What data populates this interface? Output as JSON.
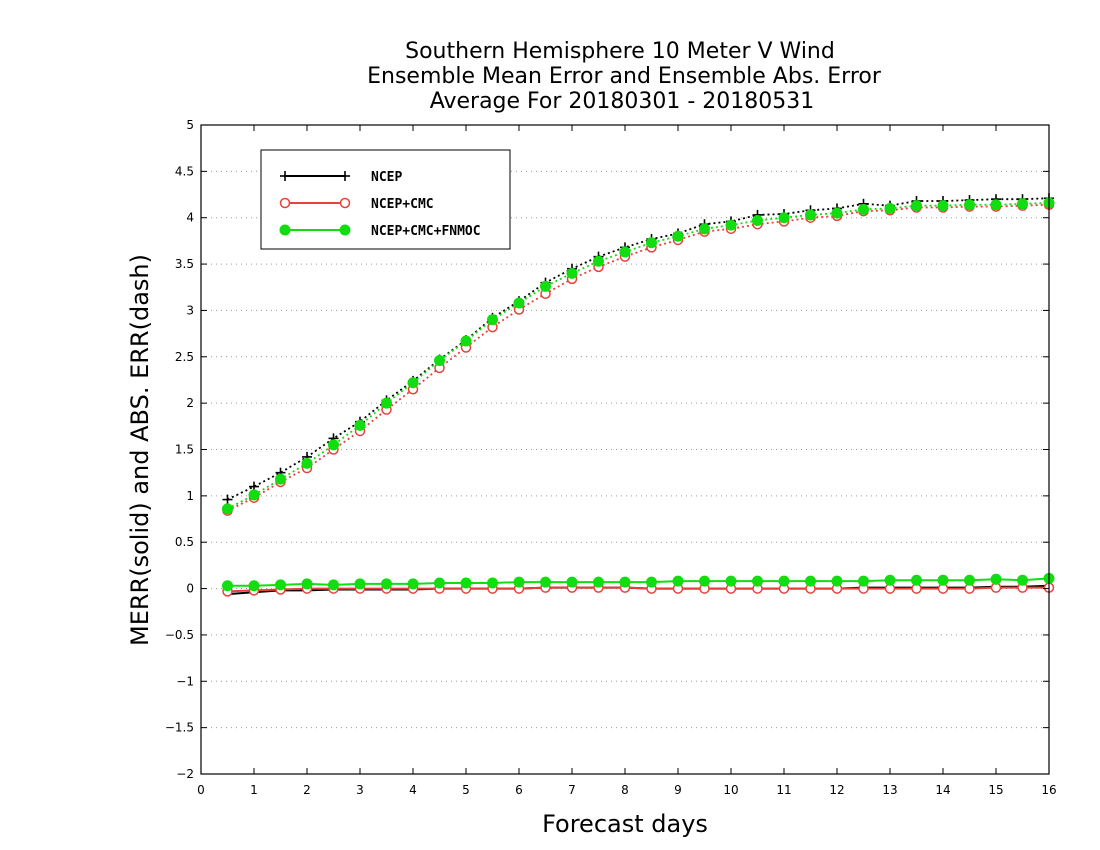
{
  "chart_data": {
    "type": "line",
    "title_lines": [
      "Southern Hemisphere 10 Meter V Wind",
      "Ensemble Mean Error and Ensemble Abs. Error",
      "Average For 20180301 - 20180531"
    ],
    "xlabel": "Forecast days",
    "ylabel": "MERR(solid) and ABS. ERR(dash)",
    "xlim": [
      0,
      16
    ],
    "ylim": [
      -2,
      5
    ],
    "xticks": [
      "0",
      "1",
      "2",
      "3",
      "4",
      "5",
      "6",
      "7",
      "8",
      "9",
      "10",
      "11",
      "12",
      "13",
      "14",
      "15",
      "16"
    ],
    "yticks": [
      "−2",
      "−1.5",
      "−1",
      "−0.5",
      "0",
      "0.5",
      "1",
      "1.5",
      "2",
      "2.5",
      "3",
      "3.5",
      "4",
      "4.5",
      "5"
    ],
    "grid": "horizontal-dotted",
    "legend_position": "top-left",
    "x": [
      0.5,
      1,
      1.5,
      2,
      2.5,
      3,
      3.5,
      4,
      4.5,
      5,
      5.5,
      6,
      6.5,
      7,
      7.5,
      8,
      8.5,
      9,
      9.5,
      10,
      10.5,
      11,
      11.5,
      12,
      12.5,
      13,
      13.5,
      14,
      14.5,
      15,
      15.5,
      16
    ],
    "series": [
      {
        "name": "NCEP",
        "color": "#000000",
        "marker": "plus",
        "abs_err": [
          0.96,
          1.1,
          1.25,
          1.42,
          1.62,
          1.8,
          2.03,
          2.24,
          2.47,
          2.68,
          2.92,
          3.1,
          3.3,
          3.45,
          3.58,
          3.68,
          3.77,
          3.83,
          3.93,
          3.96,
          4.03,
          4.04,
          4.08,
          4.1,
          4.15,
          4.13,
          4.18,
          4.18,
          4.19,
          4.2,
          4.2,
          4.21
        ],
        "mean_err": [
          -0.06,
          -0.04,
          -0.02,
          -0.02,
          -0.01,
          -0.01,
          -0.01,
          -0.01,
          0.0,
          0.0,
          0.0,
          0.0,
          0.01,
          0.01,
          0.01,
          0.01,
          0.0,
          0.0,
          0.0,
          0.0,
          0.0,
          0.0,
          0.0,
          0.0,
          0.01,
          0.01,
          0.01,
          0.01,
          0.01,
          0.02,
          0.02,
          0.03
        ]
      },
      {
        "name": "NCEP+CMC",
        "color": "#e8413c",
        "marker": "open-circle",
        "abs_err": [
          0.84,
          0.98,
          1.15,
          1.3,
          1.5,
          1.7,
          1.93,
          2.15,
          2.38,
          2.6,
          2.82,
          3.01,
          3.18,
          3.34,
          3.47,
          3.58,
          3.68,
          3.76,
          3.85,
          3.88,
          3.93,
          3.96,
          4.0,
          4.02,
          4.07,
          4.08,
          4.11,
          4.11,
          4.12,
          4.12,
          4.13,
          4.14
        ],
        "mean_err": [
          -0.03,
          -0.02,
          -0.01,
          0.0,
          0.0,
          0.0,
          0.0,
          0.0,
          0.0,
          0.0,
          0.0,
          0.0,
          0.01,
          0.01,
          0.01,
          0.01,
          0.0,
          0.0,
          0.0,
          0.0,
          0.0,
          0.0,
          0.0,
          0.0,
          0.0,
          0.0,
          0.0,
          0.0,
          0.0,
          0.01,
          0.01,
          0.01
        ]
      },
      {
        "name": "NCEP+CMC+FNMOC",
        "color": "#11dd11",
        "marker": "filled-circle",
        "abs_err": [
          0.86,
          1.01,
          1.18,
          1.35,
          1.55,
          1.76,
          2.0,
          2.22,
          2.46,
          2.67,
          2.9,
          3.08,
          3.26,
          3.4,
          3.53,
          3.63,
          3.73,
          3.8,
          3.88,
          3.92,
          3.97,
          4.0,
          4.03,
          4.05,
          4.09,
          4.1,
          4.13,
          4.13,
          4.14,
          4.14,
          4.15,
          4.16
        ],
        "mean_err": [
          0.03,
          0.03,
          0.04,
          0.05,
          0.04,
          0.05,
          0.05,
          0.05,
          0.06,
          0.06,
          0.06,
          0.07,
          0.07,
          0.07,
          0.07,
          0.07,
          0.07,
          0.08,
          0.08,
          0.08,
          0.08,
          0.08,
          0.08,
          0.08,
          0.08,
          0.09,
          0.09,
          0.09,
          0.09,
          0.1,
          0.09,
          0.11
        ]
      }
    ]
  }
}
